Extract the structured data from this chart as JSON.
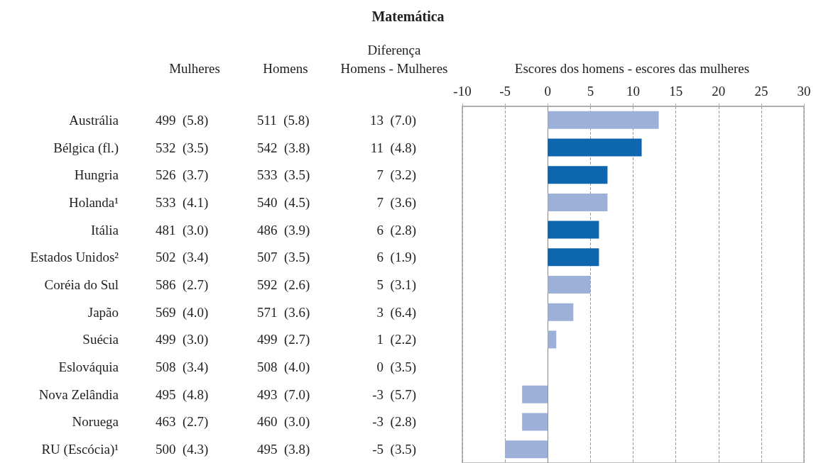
{
  "chart_data": {
    "type": "bar",
    "orientation": "horizontal",
    "title": "Matemática",
    "xlabel": "Escores dos homens - escores das mulheres",
    "categories": [
      "Austrália",
      "Bélgica (fl.)",
      "Hungria",
      "Holanda¹",
      "Itália",
      "Estados Unidos²",
      "Coréia do Sul",
      "Japão",
      "Suécia",
      "Eslováquia",
      "Nova Zelândia",
      "Noruega",
      "RU (Escócia)¹"
    ],
    "values": [
      13,
      11,
      7,
      7,
      6,
      6,
      5,
      3,
      1,
      0,
      -3,
      -3,
      -5
    ],
    "colors": [
      "#9db0d8",
      "#0d66ae",
      "#0d66ae",
      "#9db0d8",
      "#0d66ae",
      "#0d66ae",
      "#9db0d8",
      "#9db0d8",
      "#9db0d8",
      "#9db0d8",
      "#9db0d8",
      "#9db0d8",
      "#9db0d8"
    ],
    "value_labels": [
      "13  (7.0)",
      "11  (4.8)",
      "7  (3.2)",
      "7  (3.6)",
      "6  (2.8)",
      "6  (1.9)",
      "5  (3.1)",
      "3  (6.4)",
      "1  (2.2)",
      "0  (3.5)",
      "-3  (5.7)",
      "-3  (2.8)",
      "-5  (3.5)"
    ],
    "annotations": [
      "Mulheres",
      "Homens",
      "Diferença",
      "Homens - Mulheres",
      "499  (5.8)",
      "511  (5.8)",
      "532  (3.5)",
      "542  (3.8)",
      "526  (3.7)",
      "533  (3.5)",
      "533  (4.1)",
      "540  (4.5)",
      "481  (3.0)",
      "486  (3.9)",
      "502  (3.4)",
      "507  (3.5)",
      "586  (2.7)",
      "592  (2.6)",
      "569  (4.0)",
      "571  (3.6)",
      "499  (3.0)",
      "499  (2.7)",
      "508  (3.4)",
      "508  (4.0)",
      "495  (4.8)",
      "493  (7.0)",
      "463  (2.7)",
      "460  (3.0)",
      "500  (4.3)",
      "495  (3.8)"
    ],
    "x2lim": [
      -10,
      30
    ],
    "x2ticks": [
      -10,
      -5,
      0,
      5,
      10,
      15,
      20,
      25,
      30
    ],
    "grid": "x"
  }
}
